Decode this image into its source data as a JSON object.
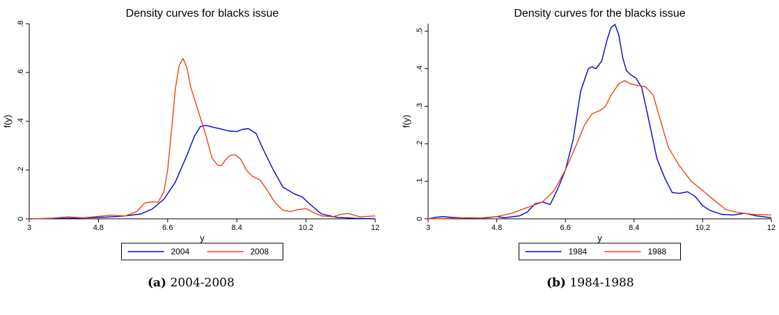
{
  "chart_data": [
    {
      "type": "line",
      "title": "Density curves for blacks issue",
      "xlabel": "y",
      "ylabel": "f(y)",
      "xlim": [
        3,
        12
      ],
      "ylim": [
        0,
        0.8
      ],
      "x_ticks": [
        3,
        4.8,
        6.6,
        8.4,
        10.2,
        12
      ],
      "x_tick_labels": [
        "3",
        "4.8",
        "6.6",
        "8.4",
        "10.2",
        "12"
      ],
      "y_ticks": [
        0,
        0.2,
        0.4,
        0.6,
        0.8
      ],
      "y_tick_labels": [
        "0",
        ".2",
        ".4",
        ".6",
        ".8"
      ],
      "legend_position": "bottom",
      "grid": false,
      "series": [
        {
          "name": "2004",
          "color": "#0000cc",
          "x": [
            3,
            3.8,
            4.5,
            5.0,
            5.5,
            5.9,
            6.2,
            6.5,
            6.8,
            7.1,
            7.3,
            7.45,
            7.6,
            7.8,
            8.0,
            8.2,
            8.4,
            8.55,
            8.7,
            8.9,
            9.1,
            9.35,
            9.6,
            9.9,
            10.1,
            10.3,
            10.6,
            11.0,
            11.5,
            12
          ],
          "y": [
            0,
            0.002,
            0.004,
            0.007,
            0.012,
            0.02,
            0.04,
            0.08,
            0.15,
            0.26,
            0.34,
            0.378,
            0.383,
            0.375,
            0.368,
            0.36,
            0.358,
            0.367,
            0.37,
            0.35,
            0.28,
            0.2,
            0.13,
            0.102,
            0.09,
            0.06,
            0.02,
            0.006,
            0.002,
            0.0
          ]
        },
        {
          "name": "2008",
          "color": "#ee4411",
          "x": [
            3,
            3.6,
            4.0,
            4.4,
            4.8,
            5.1,
            5.5,
            5.8,
            6.0,
            6.2,
            6.35,
            6.5,
            6.6,
            6.7,
            6.8,
            6.9,
            7.0,
            7.1,
            7.2,
            7.4,
            7.6,
            7.75,
            7.9,
            8.0,
            8.1,
            8.2,
            8.35,
            8.5,
            8.65,
            8.8,
            9.0,
            9.2,
            9.4,
            9.6,
            9.8,
            10.0,
            10.2,
            10.4,
            10.6,
            10.9,
            11.1,
            11.3,
            11.6,
            12
          ],
          "y": [
            0,
            0.003,
            0.008,
            0.004,
            0.01,
            0.015,
            0.012,
            0.03,
            0.065,
            0.07,
            0.068,
            0.11,
            0.2,
            0.36,
            0.53,
            0.63,
            0.658,
            0.62,
            0.54,
            0.44,
            0.34,
            0.25,
            0.22,
            0.218,
            0.24,
            0.258,
            0.263,
            0.245,
            0.2,
            0.175,
            0.16,
            0.115,
            0.065,
            0.035,
            0.03,
            0.038,
            0.042,
            0.025,
            0.012,
            0.008,
            0.018,
            0.022,
            0.008,
            0.012
          ]
        }
      ]
    },
    {
      "type": "line",
      "title": "Density curves for the blacks issue",
      "xlabel": "y",
      "ylabel": "f(y)",
      "xlim": [
        3,
        12
      ],
      "ylim": [
        0,
        0.52
      ],
      "x_ticks": [
        3,
        4.8,
        6.6,
        8.4,
        10.2,
        12
      ],
      "x_tick_labels": [
        "3",
        "4.8",
        "6.6",
        "8.4",
        "10.2",
        "12"
      ],
      "y_ticks": [
        0,
        0.1,
        0.2,
        0.3,
        0.4,
        0.5
      ],
      "y_tick_labels": [
        "0",
        ".1",
        ".2",
        ".3",
        ".4",
        ".5"
      ],
      "legend_position": "bottom",
      "grid": false,
      "series": [
        {
          "name": "1984",
          "color": "#0000cc",
          "x": [
            3,
            3.2,
            3.4,
            3.6,
            4.0,
            4.4,
            4.6,
            4.8,
            5.0,
            5.4,
            5.6,
            5.8,
            6.0,
            6.2,
            6.4,
            6.6,
            6.8,
            7.0,
            7.2,
            7.3,
            7.4,
            7.55,
            7.7,
            7.8,
            7.9,
            8.0,
            8.1,
            8.2,
            8.3,
            8.45,
            8.6,
            8.75,
            9.0,
            9.2,
            9.4,
            9.6,
            9.8,
            10.0,
            10.2,
            10.4,
            10.7,
            11.0,
            11.3,
            11.6,
            12
          ],
          "y": [
            0,
            0.004,
            0.006,
            0.004,
            0.002,
            0.002,
            0.004,
            0.006,
            0.003,
            0.008,
            0.018,
            0.04,
            0.045,
            0.038,
            0.08,
            0.13,
            0.21,
            0.34,
            0.4,
            0.405,
            0.4,
            0.42,
            0.48,
            0.51,
            0.518,
            0.49,
            0.43,
            0.395,
            0.385,
            0.375,
            0.35,
            0.28,
            0.16,
            0.11,
            0.07,
            0.068,
            0.072,
            0.06,
            0.035,
            0.022,
            0.012,
            0.01,
            0.015,
            0.008,
            0.003
          ]
        },
        {
          "name": "1988",
          "color": "#ee4411",
          "x": [
            3,
            3.5,
            4.0,
            4.5,
            4.8,
            5.2,
            5.6,
            6.0,
            6.3,
            6.6,
            6.9,
            7.1,
            7.3,
            7.5,
            7.65,
            7.8,
            8.0,
            8.15,
            8.3,
            8.5,
            8.7,
            8.9,
            9.1,
            9.3,
            9.6,
            9.9,
            10.2,
            10.5,
            10.8,
            11.1,
            11.5,
            12
          ],
          "y": [
            0,
            0.001,
            0.003,
            0.002,
            0.006,
            0.015,
            0.03,
            0.045,
            0.075,
            0.13,
            0.2,
            0.25,
            0.28,
            0.288,
            0.3,
            0.33,
            0.36,
            0.368,
            0.36,
            0.355,
            0.352,
            0.33,
            0.26,
            0.19,
            0.14,
            0.1,
            0.075,
            0.05,
            0.025,
            0.017,
            0.012,
            0.01
          ]
        }
      ]
    }
  ],
  "captions": [
    {
      "letter": "(a)",
      "text": " 2004-2008"
    },
    {
      "letter": "(b)",
      "text": " 1984-1988"
    }
  ]
}
